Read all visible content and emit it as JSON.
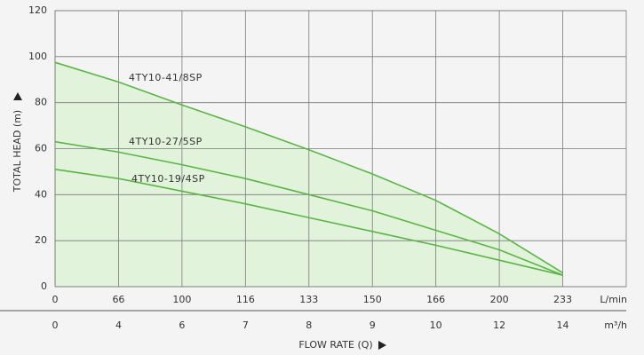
{
  "chart_data": {
    "type": "line",
    "y_label": "TOTAL HEAD (m)",
    "x_label": "FLOW RATE (Q)",
    "categories": [
      0,
      66,
      100,
      116,
      133,
      150,
      166,
      200,
      233
    ],
    "categories_unit": "L/min",
    "secondary_categories": [
      0,
      4,
      6,
      7,
      8,
      9,
      10,
      12,
      14
    ],
    "secondary_categories_unit": "m³/h",
    "series": [
      {
        "name": "4TY10-41/8SP",
        "color": "#5cb447",
        "values": [
          97.5,
          89,
          79,
          69.5,
          59.5,
          49,
          37.5,
          23,
          6
        ]
      },
      {
        "name": "4TY10-27/5SP",
        "color": "#5cb447",
        "values": [
          63,
          58.5,
          53,
          47,
          40,
          33,
          24.5,
          16,
          5
        ]
      },
      {
        "name": "4TY10-19/4SP",
        "color": "#5cb447",
        "values": [
          51,
          47,
          41.5,
          36,
          30,
          24,
          18,
          11.5,
          5
        ]
      }
    ],
    "area_color": "#e1f3db",
    "ylim": [
      0,
      120
    ],
    "yticks": [
      0,
      20,
      40,
      60,
      80,
      100,
      120
    ],
    "grid": true
  }
}
